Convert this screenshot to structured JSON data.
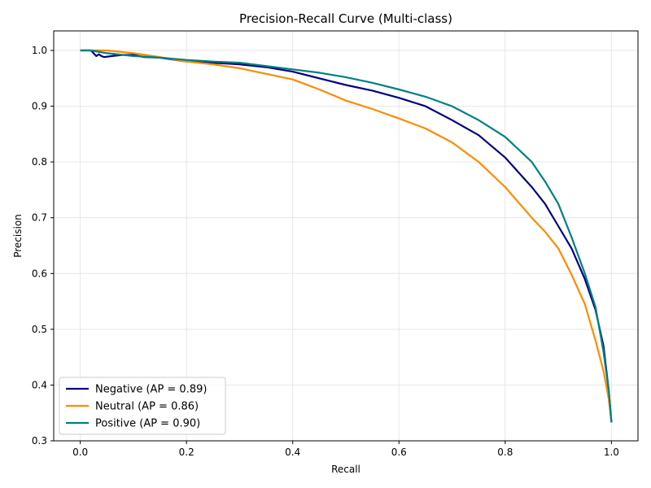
{
  "chart_data": {
    "type": "line",
    "title": "Precision-Recall Curve (Multi-class)",
    "xlabel": "Recall",
    "ylabel": "Precision",
    "xlim": [
      -0.05,
      1.05
    ],
    "ylim": [
      0.3,
      1.035
    ],
    "xticks": [
      0.0,
      0.2,
      0.4,
      0.6,
      0.8,
      1.0
    ],
    "xtick_labels": [
      "0.0",
      "0.2",
      "0.4",
      "0.6",
      "0.8",
      "1.0"
    ],
    "yticks": [
      0.3,
      0.4,
      0.5,
      0.6,
      0.7,
      0.8,
      0.9,
      1.0
    ],
    "ytick_labels": [
      "0.3",
      "0.4",
      "0.5",
      "0.6",
      "0.7",
      "0.8",
      "0.9",
      "1.0"
    ],
    "grid": true,
    "legend_position": "lower-left",
    "series": [
      {
        "name": "Negative (AP = 0.89)",
        "color": "#000080",
        "x": [
          0.0,
          0.02,
          0.025,
          0.03,
          0.035,
          0.04,
          0.045,
          0.06,
          0.08,
          0.1,
          0.12,
          0.15,
          0.2,
          0.25,
          0.3,
          0.35,
          0.4,
          0.45,
          0.5,
          0.55,
          0.6,
          0.65,
          0.7,
          0.75,
          0.8,
          0.85,
          0.875,
          0.9,
          0.925,
          0.95,
          0.97,
          0.985,
          0.995,
          1.0
        ],
        "y": [
          1.0,
          1.0,
          0.995,
          0.99,
          0.993,
          0.99,
          0.988,
          0.99,
          0.992,
          0.992,
          0.988,
          0.987,
          0.98,
          0.978,
          0.975,
          0.97,
          0.962,
          0.95,
          0.938,
          0.928,
          0.915,
          0.9,
          0.875,
          0.848,
          0.808,
          0.755,
          0.725,
          0.685,
          0.645,
          0.59,
          0.535,
          0.47,
          0.39,
          0.333
        ]
      },
      {
        "name": "Neutral (AP = 0.86)",
        "color": "#ff8c00",
        "x": [
          0.0,
          0.02,
          0.05,
          0.1,
          0.15,
          0.2,
          0.25,
          0.3,
          0.35,
          0.4,
          0.45,
          0.5,
          0.55,
          0.6,
          0.65,
          0.7,
          0.75,
          0.8,
          0.85,
          0.875,
          0.9,
          0.925,
          0.95,
          0.97,
          0.985,
          0.995,
          1.0
        ],
        "y": [
          1.0,
          1.0,
          1.0,
          0.995,
          0.988,
          0.98,
          0.975,
          0.968,
          0.958,
          0.948,
          0.93,
          0.91,
          0.895,
          0.878,
          0.86,
          0.835,
          0.8,
          0.755,
          0.7,
          0.675,
          0.645,
          0.598,
          0.545,
          0.48,
          0.425,
          0.375,
          0.333
        ]
      },
      {
        "name": "Positive (AP = 0.90)",
        "color": "#008080",
        "x": [
          0.0,
          0.02,
          0.05,
          0.1,
          0.15,
          0.2,
          0.25,
          0.3,
          0.35,
          0.4,
          0.45,
          0.5,
          0.55,
          0.6,
          0.65,
          0.7,
          0.75,
          0.8,
          0.85,
          0.875,
          0.9,
          0.925,
          0.95,
          0.97,
          0.985,
          0.995,
          1.0
        ],
        "y": [
          1.0,
          1.0,
          0.995,
          0.99,
          0.987,
          0.983,
          0.98,
          0.978,
          0.972,
          0.966,
          0.96,
          0.952,
          0.942,
          0.93,
          0.917,
          0.9,
          0.875,
          0.845,
          0.8,
          0.765,
          0.725,
          0.665,
          0.6,
          0.54,
          0.46,
          0.39,
          0.333
        ]
      }
    ]
  }
}
